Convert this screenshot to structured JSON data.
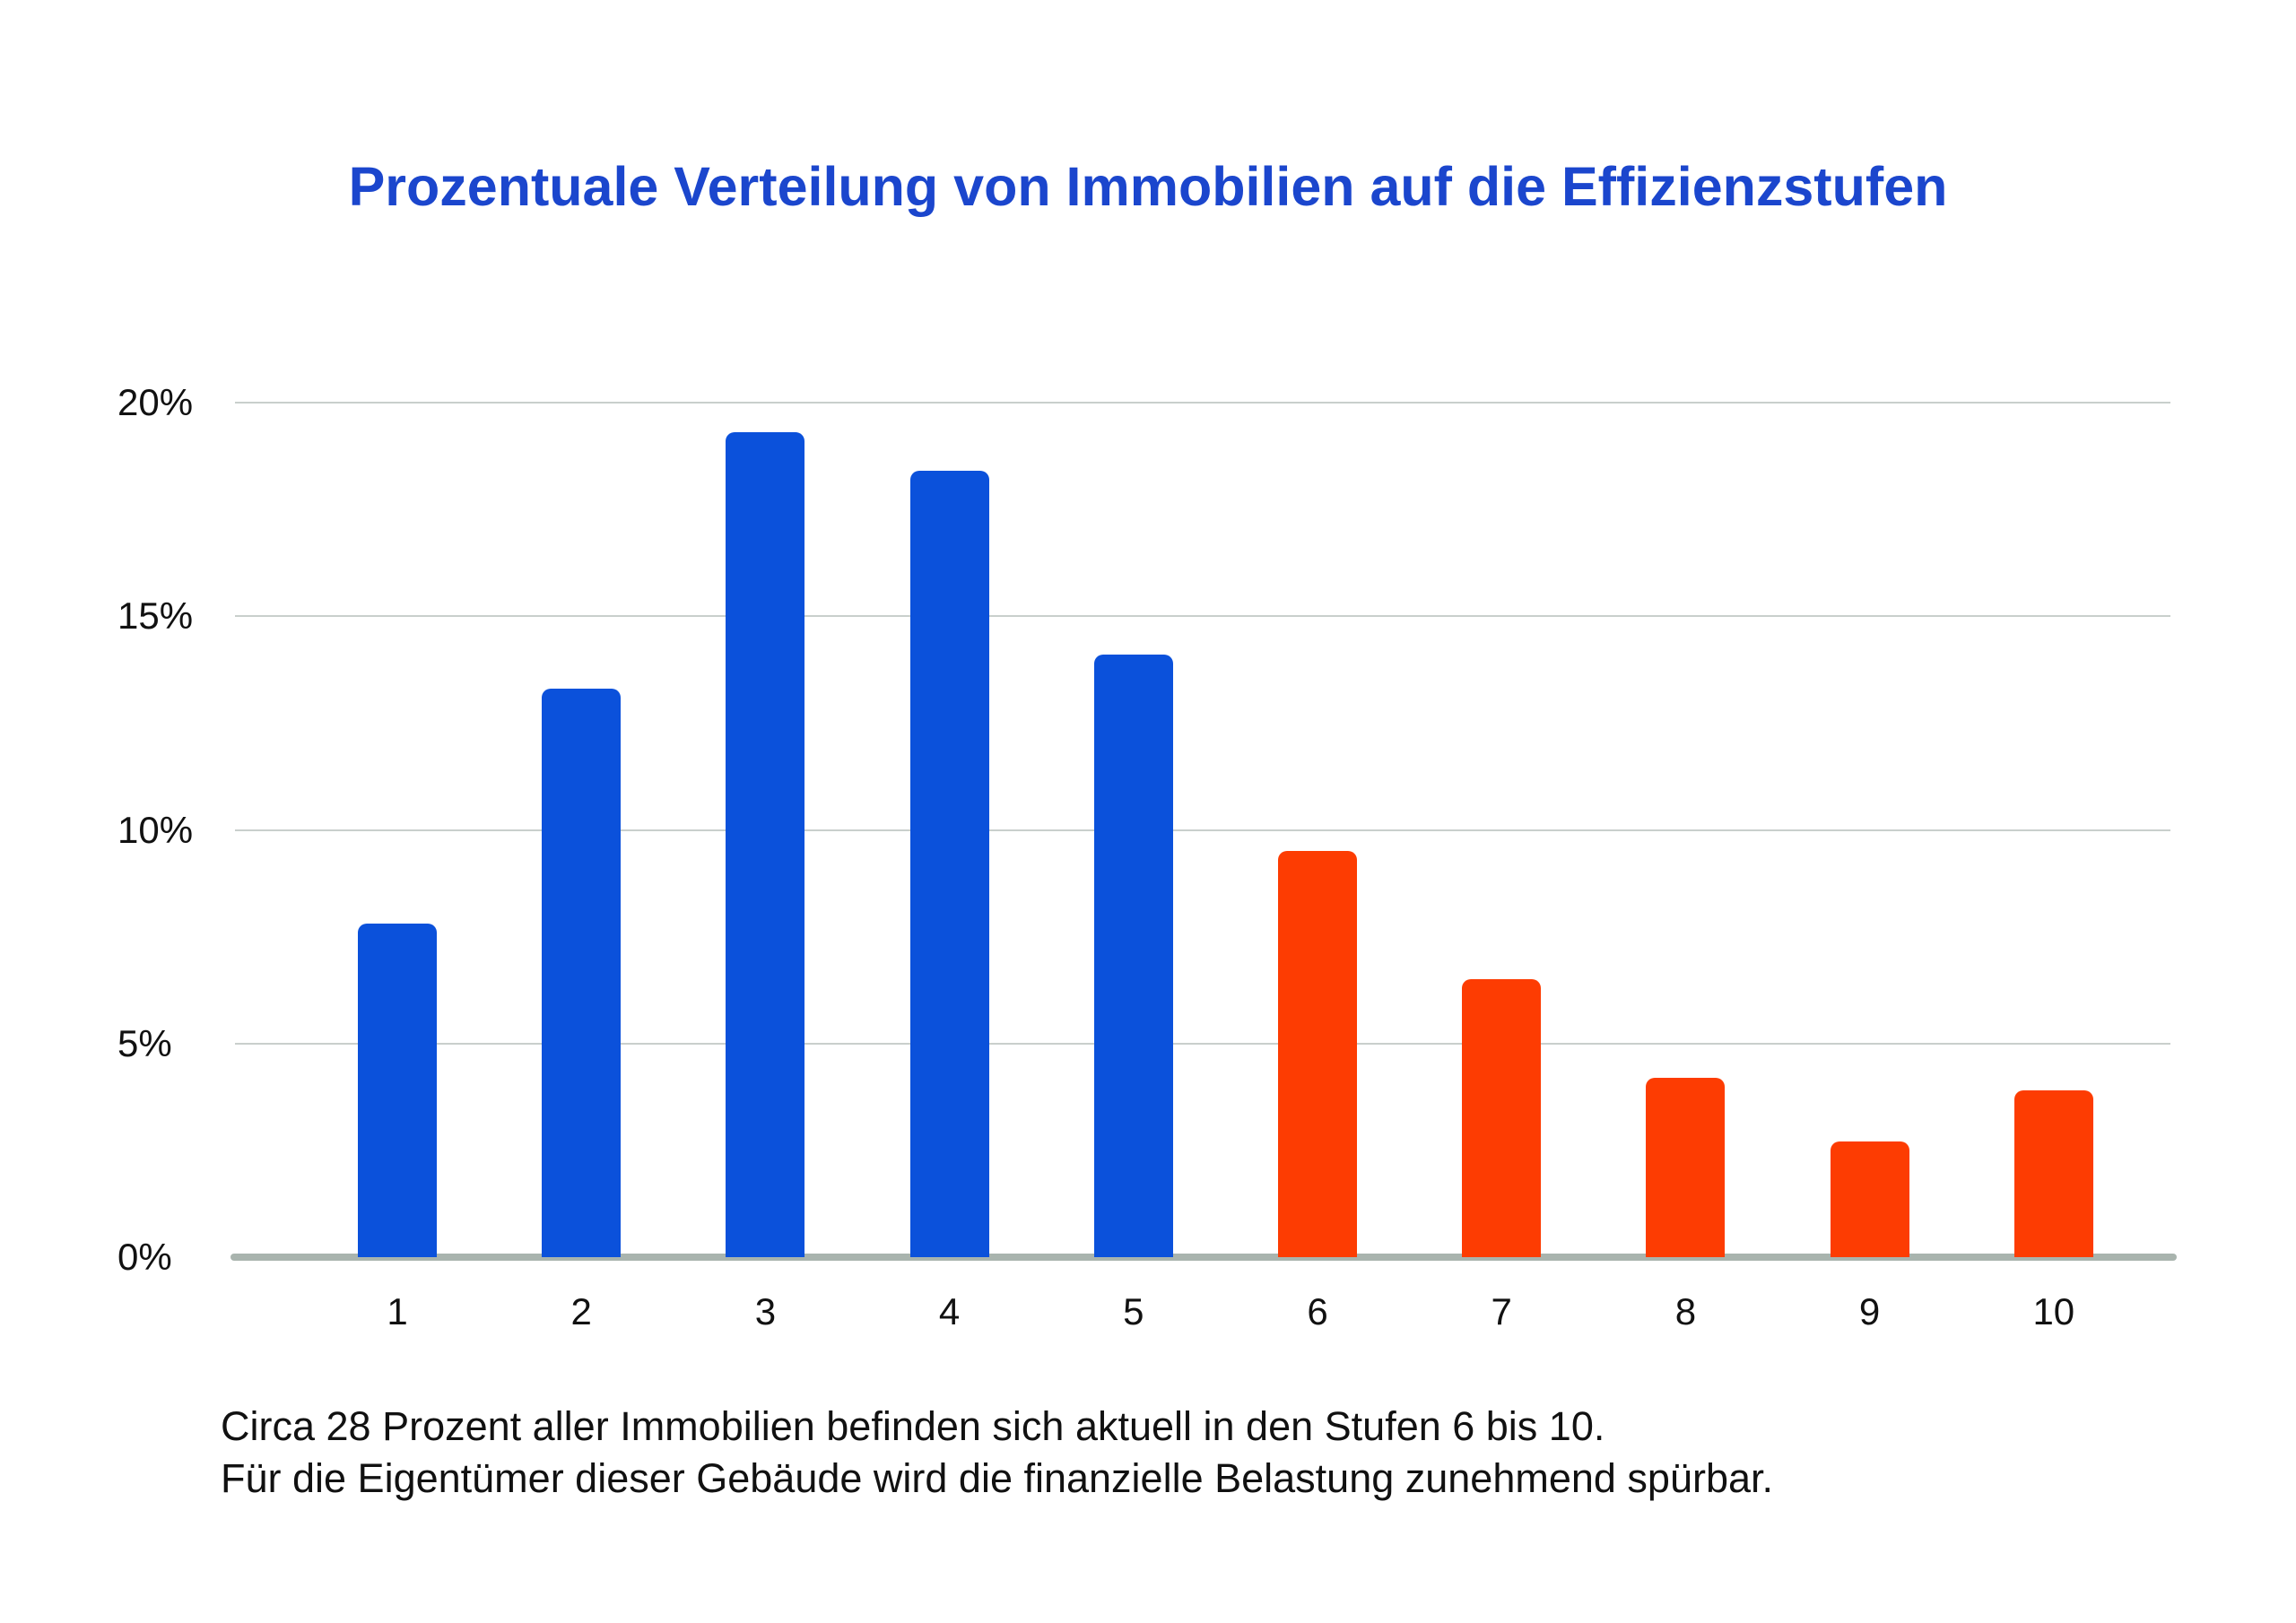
{
  "title": "Prozentuale Verteilung von Immobilien auf die Effizienzstufen",
  "caption": {
    "line1": "Circa 28 Prozent aller Immobilien befinden sich aktuell in den Stufen 6 bis 10.",
    "line2": "Für die Eigentümer dieser Gebäude wird die finanzielle Belastung zunehmend spürbar."
  },
  "colors": {
    "title_blue": "#1b46cd",
    "bar_blue": "#0b51db",
    "bar_orange": "#fd3c02",
    "baseline_gray": "#a9b4ae",
    "gridline_gray": "#c9cfcc",
    "text_black": "#111111"
  },
  "chart_data": {
    "type": "bar",
    "title": "Prozentuale Verteilung von Immobilien auf die Effizienzstufen",
    "categories": [
      "1",
      "2",
      "3",
      "4",
      "5",
      "6",
      "7",
      "8",
      "9",
      "10"
    ],
    "values": [
      7.8,
      13.3,
      19.3,
      18.4,
      14.1,
      9.5,
      6.5,
      4.2,
      2.7,
      3.9
    ],
    "bar_color_groups": [
      "blue",
      "blue",
      "blue",
      "blue",
      "blue",
      "orange",
      "orange",
      "orange",
      "orange",
      "orange"
    ],
    "xlabel": "",
    "ylabel": "",
    "ylim": [
      0,
      20
    ],
    "y_ticks": [
      {
        "value": 20,
        "label": "20%"
      },
      {
        "value": 15,
        "label": "15%"
      },
      {
        "value": 10,
        "label": "10%"
      },
      {
        "value": 5,
        "label": "5%"
      },
      {
        "value": 0,
        "label": "0%"
      }
    ],
    "grid": true,
    "legend": false
  }
}
